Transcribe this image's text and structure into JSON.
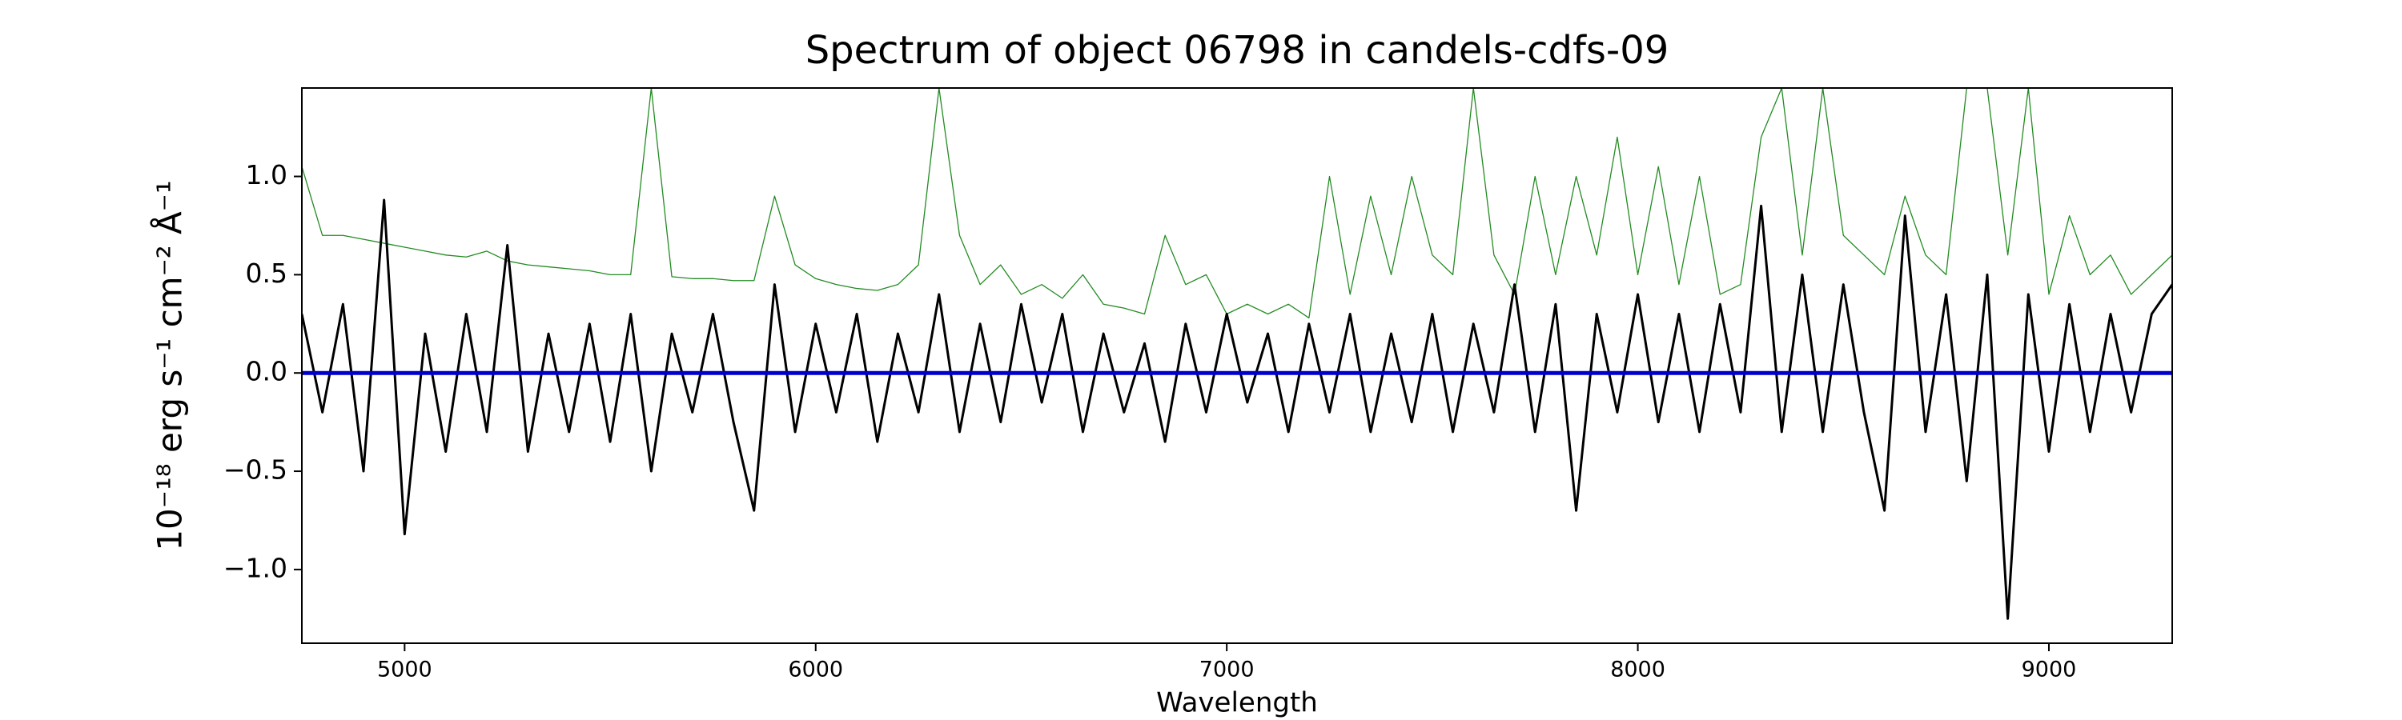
{
  "chart_data": {
    "type": "line",
    "title": "Spectrum of object 06798 in candels-cdfs-09",
    "xlabel": "Wavelength",
    "ylabel": "10⁻¹⁸ erg s⁻¹ cm⁻² Å⁻¹",
    "x": [
      4750,
      4800,
      4850,
      4900,
      4950,
      5000,
      5050,
      5100,
      5150,
      5200,
      5250,
      5300,
      5350,
      5400,
      5450,
      5500,
      5550,
      5600,
      5650,
      5700,
      5750,
      5800,
      5850,
      5900,
      5950,
      6000,
      6050,
      6100,
      6150,
      6200,
      6250,
      6300,
      6350,
      6400,
      6450,
      6500,
      6550,
      6600,
      6650,
      6700,
      6750,
      6800,
      6850,
      6900,
      6950,
      7000,
      7050,
      7100,
      7150,
      7200,
      7250,
      7300,
      7350,
      7400,
      7450,
      7500,
      7550,
      7600,
      7650,
      7700,
      7750,
      7800,
      7850,
      7900,
      7950,
      8000,
      8050,
      8100,
      8150,
      8200,
      8250,
      8300,
      8350,
      8400,
      8450,
      8500,
      8550,
      8600,
      8650,
      8700,
      8750,
      8800,
      8850,
      8900,
      8950,
      9000,
      9050,
      9100,
      9150,
      9200,
      9250,
      9300
    ],
    "series": [
      {
        "color": "#228b22",
        "width": 1.3,
        "values": [
          1.05,
          0.7,
          0.7,
          0.68,
          0.66,
          0.64,
          0.62,
          0.6,
          0.59,
          0.62,
          0.57,
          0.55,
          0.54,
          0.53,
          0.52,
          0.5,
          0.5,
          1.45,
          0.49,
          0.48,
          0.48,
          0.47,
          0.47,
          0.9,
          0.55,
          0.48,
          0.45,
          0.43,
          0.42,
          0.45,
          0.55,
          1.45,
          0.7,
          0.45,
          0.55,
          0.4,
          0.45,
          0.38,
          0.5,
          0.35,
          0.33,
          0.3,
          0.7,
          0.45,
          0.5,
          0.3,
          0.35,
          0.3,
          0.35,
          0.28,
          1.0,
          0.4,
          0.9,
          0.5,
          1.0,
          0.6,
          0.5,
          1.45,
          0.6,
          0.4,
          1.0,
          0.5,
          1.0,
          0.6,
          1.2,
          0.5,
          1.05,
          0.45,
          1.0,
          0.4,
          0.45,
          1.2,
          1.45,
          0.6,
          1.45,
          0.7,
          0.6,
          0.5,
          0.9,
          0.6,
          0.5,
          1.45,
          1.45,
          0.6,
          1.45,
          0.4,
          0.8,
          0.5,
          0.6,
          0.4,
          0.5,
          0.6
        ]
      },
      {
        "color": "#000000",
        "width": 3,
        "values": [
          0.3,
          -0.2,
          0.35,
          -0.5,
          0.88,
          -0.82,
          0.2,
          -0.4,
          0.3,
          -0.3,
          0.65,
          -0.4,
          0.2,
          -0.3,
          0.25,
          -0.35,
          0.3,
          -0.5,
          0.2,
          -0.2,
          0.3,
          -0.25,
          -0.7,
          0.45,
          -0.3,
          0.25,
          -0.2,
          0.3,
          -0.35,
          0.2,
          -0.2,
          0.4,
          -0.3,
          0.25,
          -0.25,
          0.35,
          -0.15,
          0.3,
          -0.3,
          0.2,
          -0.2,
          0.15,
          -0.35,
          0.25,
          -0.2,
          0.3,
          -0.15,
          0.2,
          -0.3,
          0.25,
          -0.2,
          0.3,
          -0.3,
          0.2,
          -0.25,
          0.3,
          -0.3,
          0.25,
          -0.2,
          0.45,
          -0.3,
          0.35,
          -0.7,
          0.3,
          -0.2,
          0.4,
          -0.25,
          0.3,
          -0.3,
          0.35,
          -0.2,
          0.85,
          -0.3,
          0.5,
          -0.3,
          0.45,
          -0.2,
          -0.7,
          0.8,
          -0.3,
          0.4,
          -0.55,
          0.5,
          -1.25,
          0.4,
          -0.4,
          0.35,
          -0.3,
          0.3,
          -0.2,
          0.3,
          0.45
        ]
      }
    ],
    "hlines": [
      {
        "value": 0,
        "color": "#0000cc"
      }
    ],
    "xlim": [
      4750,
      9300
    ],
    "ylim": [
      -1.375,
      1.45
    ],
    "xticks": [
      5000,
      6000,
      7000,
      8000,
      9000
    ],
    "yticks": [
      {
        "value": -1,
        "label": "−1.0"
      },
      {
        "value": -0.5,
        "label": "−0.5"
      },
      {
        "value": 0,
        "label": "0.0"
      },
      0.5,
      {
        "value": 1,
        "label": "1.0"
      }
    ]
  }
}
